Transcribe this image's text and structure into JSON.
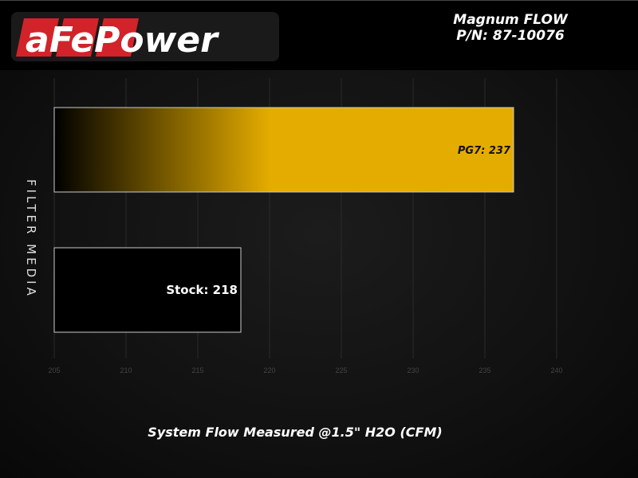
{
  "header": {
    "brand": "aFePower",
    "title_line1": "Magnum FLOW",
    "title_line2": "P/N: 87-10076"
  },
  "chart_data": {
    "type": "bar",
    "orientation": "horizontal",
    "categories": [
      "PG7",
      "Stock"
    ],
    "values": [
      237,
      218
    ],
    "data_labels": [
      "PG7: 237",
      "Stock: 218"
    ],
    "xlabel": "System Flow Measured @1.5\" H2O (CFM)",
    "ylabel": "FILTER MEDIA",
    "xlim": [
      205,
      240
    ],
    "xticks": [
      "205",
      "210",
      "215",
      "220",
      "225",
      "230",
      "235",
      "240"
    ],
    "grid": "vertical",
    "colors": {
      "PG7": "#e5ac00",
      "Stock": "#000000",
      "bar_outline": "#cccccc",
      "gridline": "#2a2a2a",
      "tick_label": "#444444"
    }
  }
}
